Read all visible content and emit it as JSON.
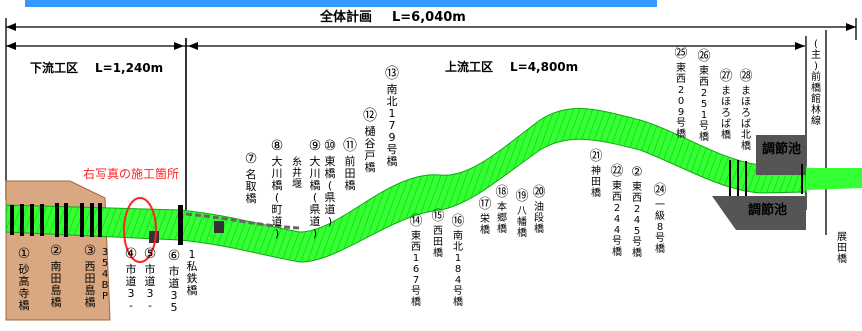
{
  "diagram": {
    "overall": {
      "label": "全体計画",
      "length": "L=6,040m"
    },
    "downstream": {
      "label": "下流工区",
      "length": "L=1,240m"
    },
    "upstream": {
      "label": "上流工区",
      "length": "L=4,800m"
    },
    "photo_note": "右写真の施工箇所",
    "pond_label": "調節池",
    "colors": {
      "river": "#33ff33",
      "river_dark": "#11cc11",
      "photo_note": "#ff2222",
      "header": "#3399ff",
      "terrain": "#d9a882"
    },
    "bridges": [
      {
        "num": "①",
        "name": "砂高寺橋"
      },
      {
        "num": "②",
        "name": "南田島橋"
      },
      {
        "num": "③",
        "name": "西田島橋"
      },
      {
        "num": "",
        "name": "354BP"
      },
      {
        "num": "④",
        "name": "市道3-"
      },
      {
        "num": "⑤",
        "name": "市道3-5"
      },
      {
        "num": "⑥",
        "name": "市道35"
      },
      {
        "num": "",
        "name": "1私鉄橋"
      },
      {
        "num": "⑦",
        "name": "名取橋"
      },
      {
        "num": "⑧",
        "name": "大川橋(町道)"
      },
      {
        "num": "",
        "name": "糸井堰"
      },
      {
        "num": "⑨",
        "name": "大川橋(県道)"
      },
      {
        "num": "⑩",
        "name": "東橋(県道)"
      },
      {
        "num": "⑪",
        "name": "前田橋"
      },
      {
        "num": "⑫",
        "name": "樋谷戸橋"
      },
      {
        "num": "⑬",
        "name": "南北179号橋"
      },
      {
        "num": "⑭",
        "name": "東西167号橋"
      },
      {
        "num": "⑮",
        "name": "西田橋"
      },
      {
        "num": "⑯",
        "name": "南北184号橋"
      },
      {
        "num": "⑰",
        "name": "栄橋"
      },
      {
        "num": "⑱",
        "name": "本郷橋"
      },
      {
        "num": "⑲",
        "name": "八幡橋"
      },
      {
        "num": "⑳",
        "name": "油段橋"
      },
      {
        "num": "㉑",
        "name": "神田橋"
      },
      {
        "num": "㉒",
        "name": "東西244号橋"
      },
      {
        "num": "②",
        "name": "東西245号橋"
      },
      {
        "num": "㉔",
        "name": "一級8号橋"
      },
      {
        "num": "㉕",
        "name": "東西209号橋"
      },
      {
        "num": "㉖",
        "name": "東西251号橋"
      },
      {
        "num": "㉗",
        "name": "まほろば橋"
      },
      {
        "num": "㉘",
        "name": "まほろば北橋"
      },
      {
        "num": "",
        "name": "(主)前橋館林線"
      },
      {
        "num": "",
        "name": "展田橋"
      }
    ]
  }
}
